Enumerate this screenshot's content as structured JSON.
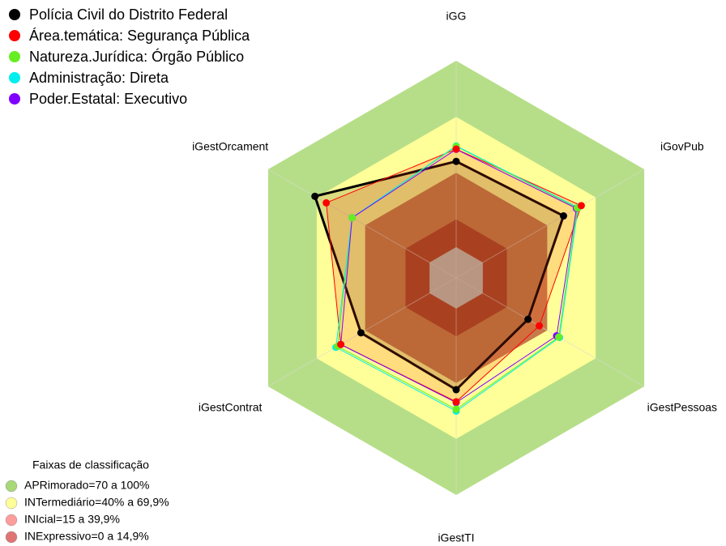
{
  "chart_data": {
    "type": "radar",
    "axes": [
      "iGG",
      "iGovPub",
      "iGestPessoas",
      "iGestTI",
      "iGestContrat",
      "iGestOrcament"
    ],
    "rlim": [
      -16.5,
      100
    ],
    "series": [
      {
        "name": "Polícia Civil do Distrito Federal",
        "color": "#000000",
        "values": [
          46,
          50,
          28,
          43.5,
          42.5,
          71
        ]
      },
      {
        "name": "Área.temática: Segurança Pública",
        "color": "#ff0000",
        "values": [
          52.6,
          61,
          35,
          50,
          55,
          64
        ]
      },
      {
        "name": "Natureza.Jurídica: Órgão Público",
        "color": "#66ee22",
        "values": [
          54,
          58.5,
          47,
          54,
          57,
          48
        ]
      },
      {
        "name": "Administração: Direta",
        "color": "#00eeee",
        "values": [
          54.3,
          59,
          47.5,
          55,
          58,
          48
        ]
      },
      {
        "name": "Poder.Estatal: Executivo",
        "color": "#8000ff",
        "values": [
          52.5,
          58,
          45.7,
          50.4,
          55,
          48
        ]
      }
    ],
    "bands": {
      "title": "Faixas de classificação",
      "items": [
        {
          "label": "APRimorado=70 a 100%",
          "range": [
            70,
            100
          ],
          "color": "#b6de88",
          "legend_color": "#a8d878"
        },
        {
          "label": "INTermediário=40% a 69,9%",
          "range": [
            40,
            69.9
          ],
          "color": "#ffff99",
          "legend_color": "#ffff99"
        },
        {
          "label": "INIcial=15 a 39,9%",
          "range": [
            15,
            39.9
          ],
          "color": "#c67a4c",
          "legend_color": "#ff9c9c"
        },
        {
          "label": "INExpressivo=0 a 14,9%",
          "range": [
            0,
            14.9
          ],
          "color": "#a83c28",
          "legend_color": "#e07474"
        }
      ]
    }
  }
}
